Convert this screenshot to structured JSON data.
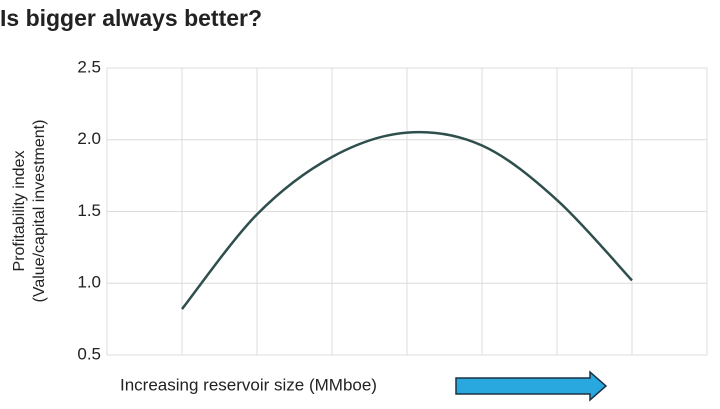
{
  "chart_data": {
    "type": "line",
    "title": "Is bigger always better?",
    "y_label": [
      "Profitability index",
      "(Value/capital investment)"
    ],
    "x_label": "Increasing reservoir size (MMboe)",
    "x": [
      1,
      2,
      3,
      4,
      5,
      6,
      7
    ],
    "values": [
      0.82,
      1.48,
      1.88,
      2.05,
      1.96,
      1.58,
      1.02
    ],
    "color": "#2f4f4d",
    "xlim": [
      0,
      8
    ],
    "ylim": [
      0.5,
      2.5
    ],
    "yticks": [
      {
        "value": 0.5,
        "label": "0.5"
      },
      {
        "value": 1,
        "label": "1.0"
      },
      {
        "value": 1.5,
        "label": "1.5"
      },
      {
        "value": 2,
        "label": "2.0"
      },
      {
        "value": 2.5,
        "label": "2.5"
      }
    ],
    "grid": true
  }
}
